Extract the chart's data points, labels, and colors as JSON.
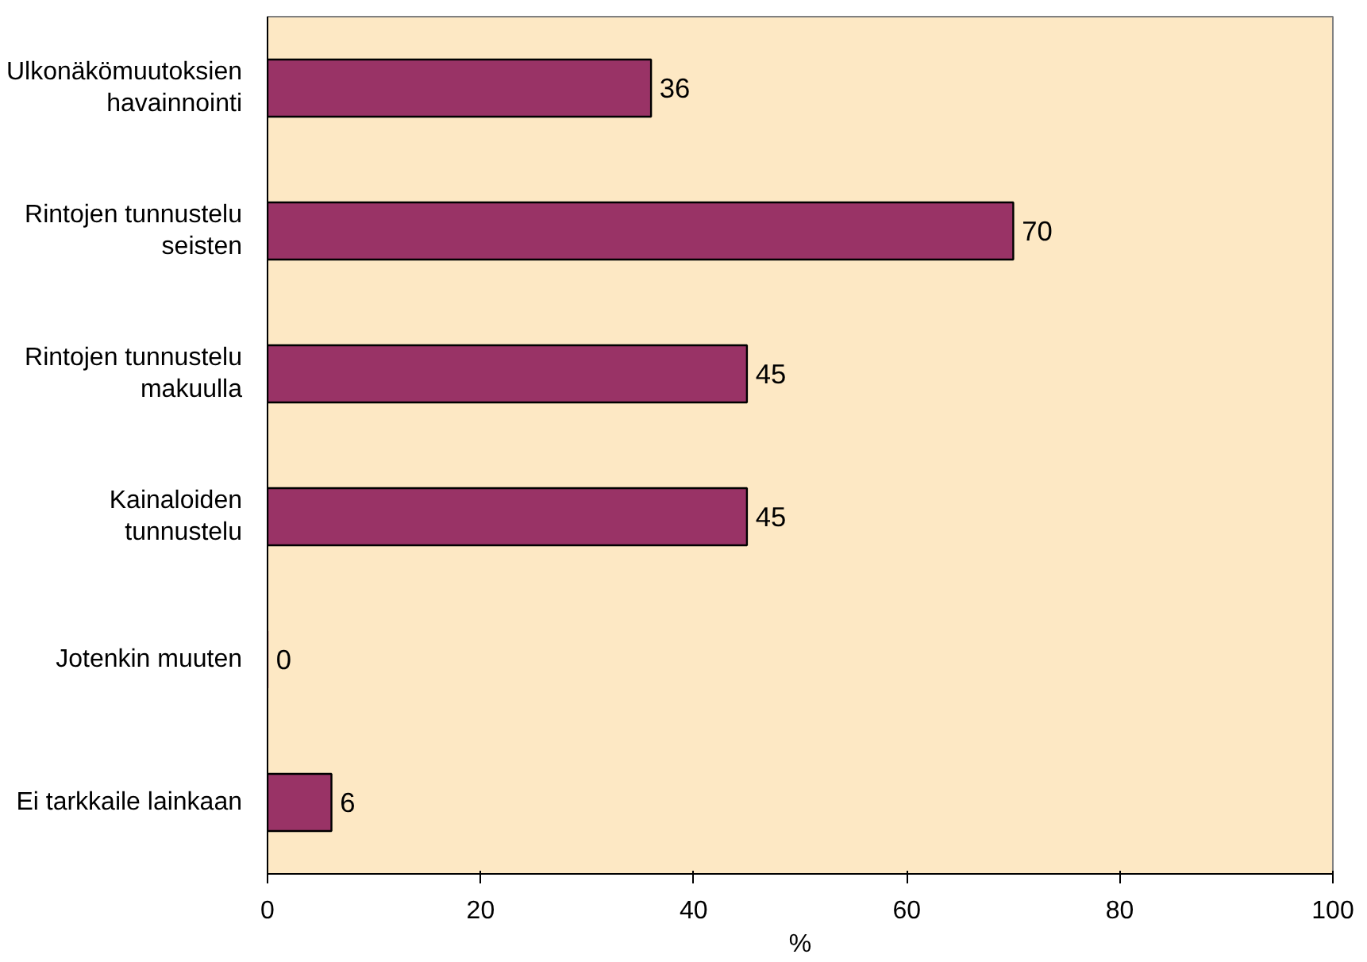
{
  "chart_data": {
    "type": "bar",
    "orientation": "horizontal",
    "categories": [
      "Ulkonäkömuutoksien\nhavainnointi",
      "Rintojen tunnustelu\nseisten",
      "Rintojen tunnustelu\nmakuulla",
      "Kainaloiden\ntunnustelu",
      "Jotenkin muuten",
      "Ei tarkkaile lainkaan"
    ],
    "values": [
      36,
      70,
      45,
      45,
      0,
      6
    ],
    "color": "#993366",
    "xlabel": "%",
    "xlim": [
      0,
      100
    ],
    "xticks": [
      0,
      20,
      40,
      60,
      80,
      100
    ],
    "data_labels": true,
    "grid": false
  }
}
